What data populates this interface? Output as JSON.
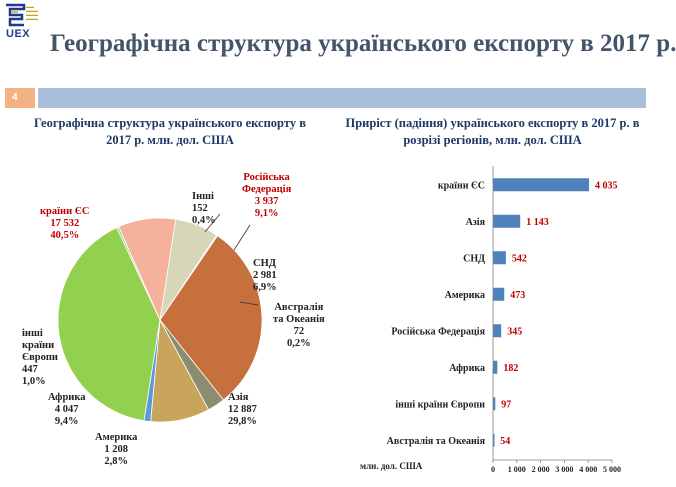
{
  "logo": {
    "text": "UEX"
  },
  "page": {
    "title": "Географічна структура українського експорту в 2017 р.",
    "slide_number": "4"
  },
  "pie_chart_title": "Географічна структура українського експорту в 2017 р. млн. дол. США",
  "bar_chart_title": "Приріст (падіння) українського експорту в 2017 р. в розрізі регіонів, млн. дол. США",
  "pie_labels": {
    "eu": {
      "name": "країни ЄС",
      "value": "17 532",
      "pct": "40,5%"
    },
    "other": {
      "name": "Інші",
      "value": "152",
      "pct": "0,4%"
    },
    "russia": {
      "name1": "Російська",
      "name2": "Федерація",
      "value": "3 937",
      "pct": "9,1%"
    },
    "cis": {
      "name": "СНД",
      "value": "2 981",
      "pct": "6,9%"
    },
    "aus": {
      "name1": "Австралія",
      "name2": "та Океанія",
      "value": "72",
      "pct": "0,2%"
    },
    "asia": {
      "name": "Азія",
      "value": "12 887",
      "pct": "29,8%"
    },
    "america": {
      "name": "Америка",
      "value": "1 208",
      "pct": "2,8%"
    },
    "africa": {
      "name": "Африка",
      "value": "4 047",
      "pct": "9,4%"
    },
    "oeurope": {
      "name1": "інші",
      "name2": "країни",
      "name3": "Європи",
      "value": "447",
      "pct": "1,0%"
    }
  },
  "colors": {
    "eu": "#92d050",
    "other": "#a9d18e",
    "russia": "#f4b19c",
    "cis": "#d6d7b8",
    "aus": "#f8cbad",
    "asia": "#c5703d",
    "america": "#8c8c6e",
    "africa": "#c9a55c",
    "oeurope": "#5b9bd5",
    "bar": "#4f81bd",
    "value_red": "#c00000"
  },
  "chart_data": [
    {
      "type": "pie",
      "title": "Географічна структура українського експорту в 2017 р. млн. дол. США",
      "slices": [
        {
          "key": "eu",
          "label": "країни ЄС",
          "value": 17532,
          "pct": 40.5
        },
        {
          "key": "other",
          "label": "Інші",
          "value": 152,
          "pct": 0.4
        },
        {
          "key": "russia",
          "label": "Російська Федерація",
          "value": 3937,
          "pct": 9.1
        },
        {
          "key": "cis",
          "label": "СНД",
          "value": 2981,
          "pct": 6.9
        },
        {
          "key": "aus",
          "label": "Австралія та Океанія",
          "value": 72,
          "pct": 0.2
        },
        {
          "key": "asia",
          "label": "Азія",
          "value": 12887,
          "pct": 29.8
        },
        {
          "key": "america",
          "label": "Америка",
          "value": 1208,
          "pct": 2.8
        },
        {
          "key": "africa",
          "label": "Африка",
          "value": 4047,
          "pct": 9.4
        },
        {
          "key": "oeurope",
          "label": "інші країни Європи",
          "value": 447,
          "pct": 1.0
        }
      ]
    },
    {
      "type": "bar",
      "orientation": "horizontal",
      "title": "Приріст (падіння) українського експорту в 2017 р. в розрізі регіонів, млн. дол. США",
      "categories": [
        "країни ЄС",
        "Азія",
        "СНД",
        "Америка",
        "Російська Федерація",
        "Африка",
        "інші країни Європи",
        "Австралія та Океанія"
      ],
      "values": [
        4035,
        1143,
        542,
        473,
        345,
        182,
        97,
        54
      ],
      "value_labels": [
        "4 035",
        "1 143",
        "542",
        "473",
        "345",
        "182",
        "97",
        "54"
      ],
      "xlim": [
        0,
        5000
      ],
      "xticks": [
        "0",
        "1 000",
        "2 000",
        "3 000",
        "4 000",
        "5 000"
      ],
      "xtick_values": [
        0,
        1000,
        2000,
        3000,
        4000,
        5000
      ],
      "xlabel": "млн. дол. США"
    }
  ]
}
